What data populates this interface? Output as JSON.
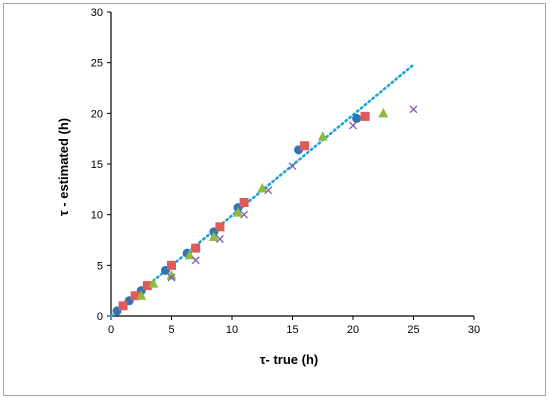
{
  "chart_data": {
    "type": "scatter",
    "title": "",
    "xlabel": "τ- true (h)",
    "ylabel": "τ - estimated (h)",
    "xlim": [
      0,
      30
    ],
    "ylim": [
      0,
      30
    ],
    "xticks": [
      0,
      5,
      10,
      15,
      20,
      25,
      30
    ],
    "yticks": [
      0,
      5,
      10,
      15,
      20,
      25,
      30
    ],
    "grid": false,
    "legend": "none",
    "series": [
      {
        "marker": "circle",
        "color": "#2e75b6",
        "x": [
          0.5,
          1.5,
          2.5,
          4.5,
          6.3,
          8.5,
          10.5,
          15.5,
          20.3
        ],
        "y": [
          0.5,
          1.5,
          2.5,
          4.5,
          6.2,
          8.3,
          10.7,
          16.4,
          19.5
        ]
      },
      {
        "marker": "square",
        "color": "#e05a5a",
        "x": [
          1.0,
          2.0,
          3.0,
          5.0,
          7.0,
          9.0,
          11.0,
          16.0,
          21.0
        ],
        "y": [
          1.0,
          2.0,
          3.0,
          5.0,
          6.7,
          8.8,
          11.2,
          16.8,
          19.7
        ]
      },
      {
        "marker": "triangle",
        "color": "#8fbc3f",
        "x": [
          2.5,
          3.5,
          5.0,
          6.5,
          8.5,
          10.5,
          12.5,
          17.5,
          22.5
        ],
        "y": [
          2.0,
          3.2,
          4.0,
          6.0,
          7.8,
          10.2,
          12.6,
          17.7,
          20.0
        ]
      },
      {
        "marker": "x",
        "color": "#7f5fa8",
        "x": [
          5.0,
          7.0,
          9.0,
          11.0,
          13.0,
          15.0,
          20.0,
          25.0
        ],
        "y": [
          3.8,
          5.5,
          7.6,
          10.0,
          12.4,
          14.8,
          18.8,
          20.4
        ]
      }
    ],
    "trendline": {
      "style": "dotted",
      "color": "#1fa4d8",
      "x": [
        0,
        25
      ],
      "y": [
        0,
        24.8
      ]
    }
  }
}
